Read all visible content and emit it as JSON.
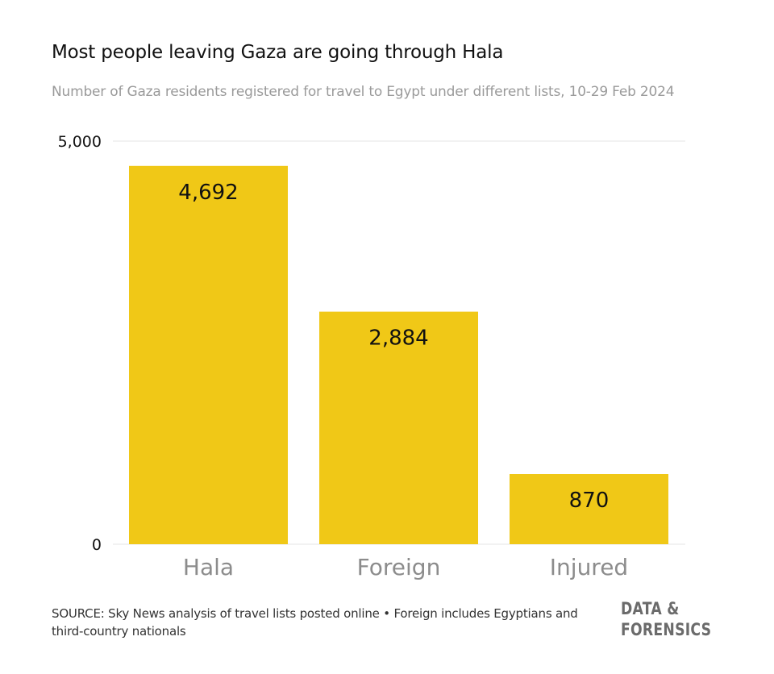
{
  "title": "Most people leaving Gaza are going through Hala",
  "subtitle": "Number of Gaza residents registered for travel to Egypt under different lists, 10-29 Feb 2024",
  "source": "SOURCE: Sky News analysis of travel lists posted online • Foreign includes Egyptians and third-country nationals",
  "brand": {
    "line1": "DATA &",
    "line2": "FORENSICS"
  },
  "colors": {
    "bar": "#f0c817",
    "grid": "#e6e6e6",
    "tick_label": "#111111",
    "category_label": "#8c8c8c",
    "data_label": "#111111"
  },
  "chart_data": {
    "type": "bar",
    "categories": [
      "Hala",
      "Foreign",
      "Injured"
    ],
    "values": [
      4692,
      2884,
      870
    ],
    "data_labels": [
      "4,692",
      "2,884",
      "870"
    ],
    "yticks": [
      0,
      5000
    ],
    "ytick_labels": [
      "0",
      "5,000"
    ],
    "ylim": [
      0,
      5000
    ],
    "xlabel": "",
    "ylabel": "",
    "grid": true
  }
}
